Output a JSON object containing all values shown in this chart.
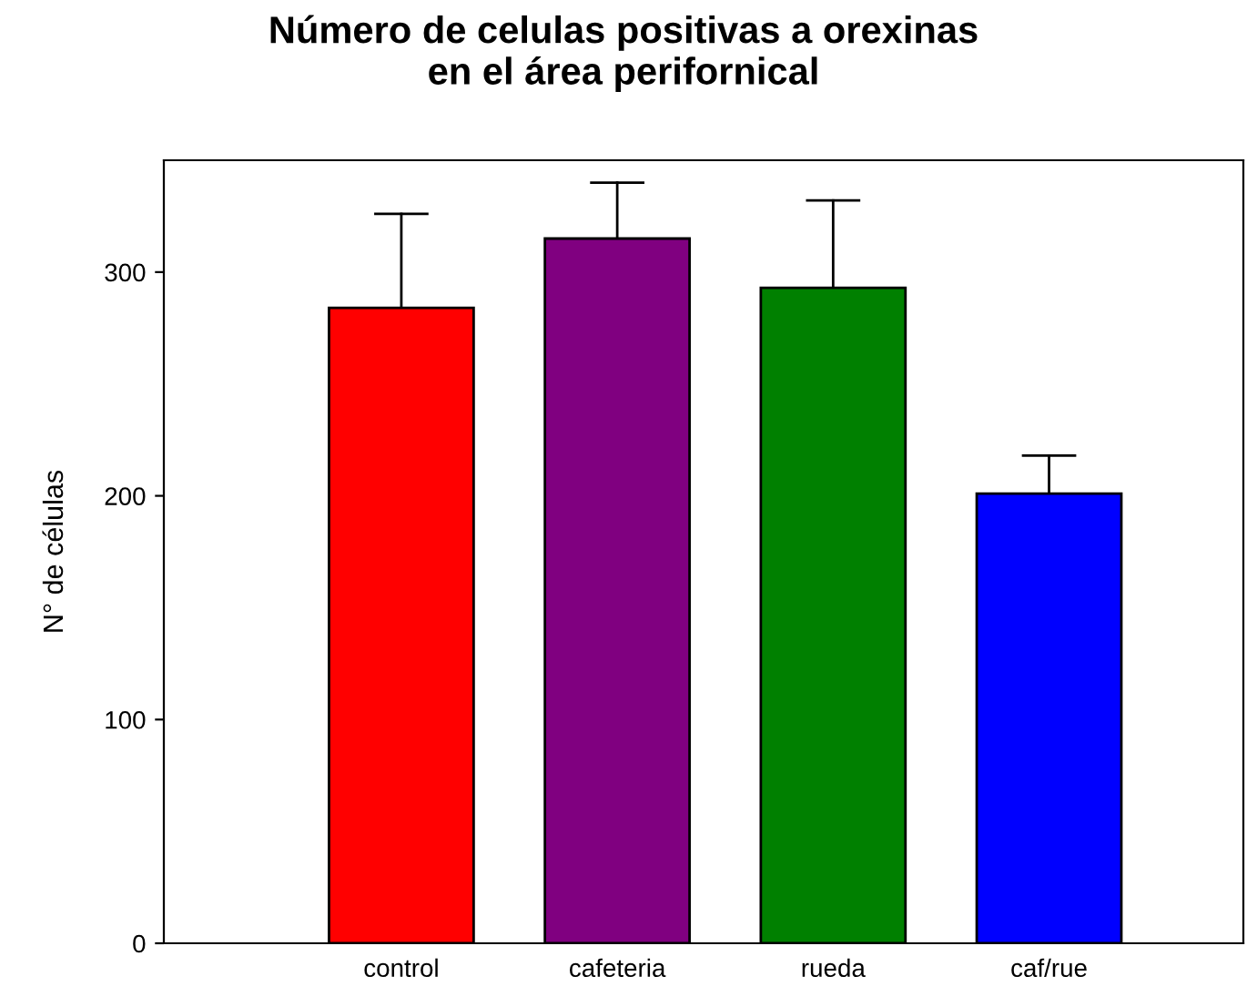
{
  "chart_data": {
    "type": "bar",
    "title": "Número de celulas positivas a orexinas\nen el área perifornical",
    "ylabel": "N° de células",
    "categories": [
      "control",
      "cafeteria",
      "rueda",
      "caf/rue"
    ],
    "values": [
      284,
      315,
      293,
      201
    ],
    "colors": [
      "#ff0000",
      "#800080",
      "#008000",
      "#0000ff"
    ],
    "errors": [
      [
        284,
        326
      ],
      [
        315,
        340
      ],
      [
        293,
        332
      ],
      [
        201,
        218
      ]
    ],
    "ylim": [
      0,
      350
    ],
    "yticks": [
      0,
      100,
      200,
      300
    ],
    "grid": false,
    "legend": false
  }
}
